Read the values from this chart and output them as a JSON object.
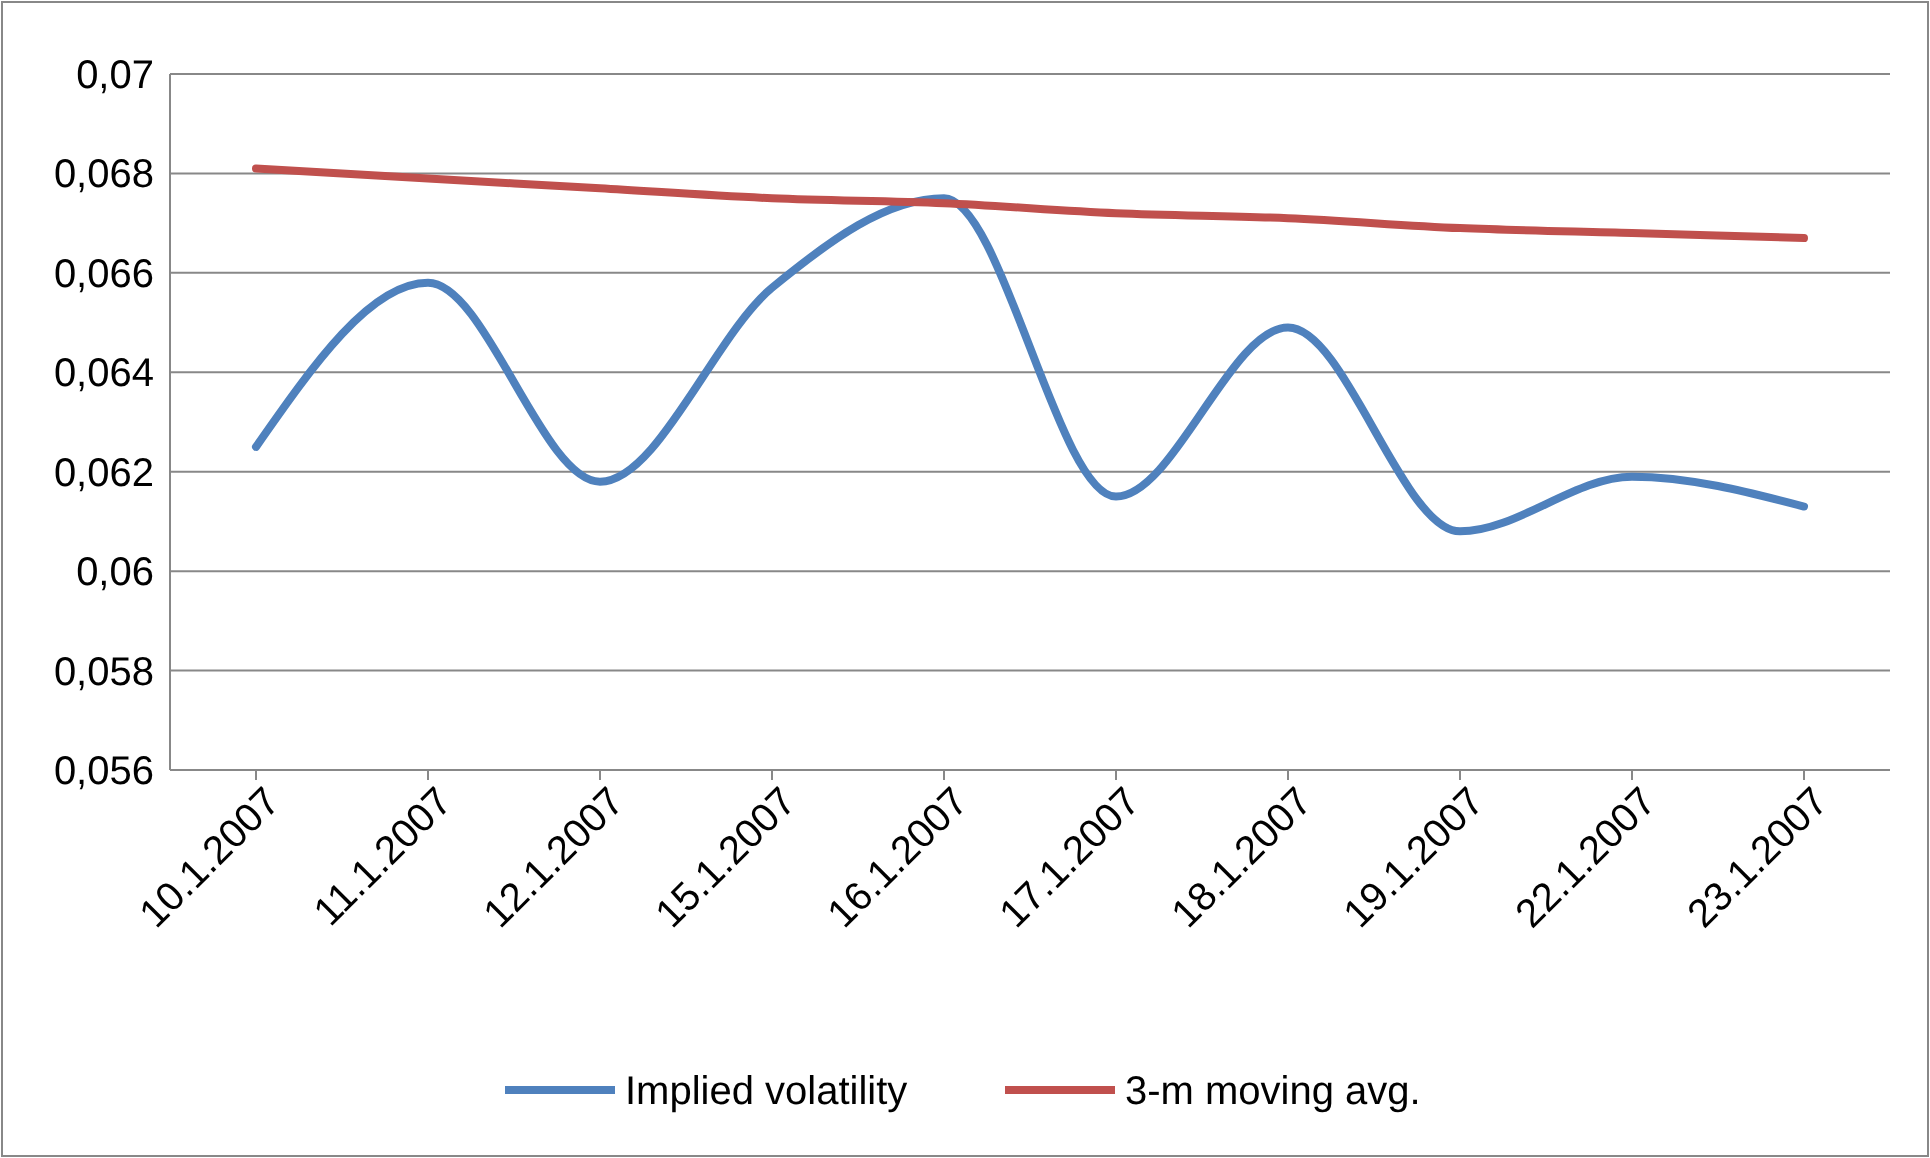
{
  "chart_data": {
    "type": "line",
    "categories": [
      "10.1.2007",
      "11.1.2007",
      "12.1.2007",
      "15.1.2007",
      "16.1.2007",
      "17.1.2007",
      "18.1.2007",
      "19.1.2007",
      "22.1.2007",
      "23.1.2007"
    ],
    "series": [
      {
        "name": "Implied volatility",
        "color": "#4f81bd",
        "values": [
          0.0625,
          0.0658,
          0.0618,
          0.0657,
          0.0675,
          0.0615,
          0.0649,
          0.0608,
          0.0619,
          0.0613
        ]
      },
      {
        "name": "3-m moving avg.",
        "color": "#c0504d",
        "values": [
          0.0681,
          0.0679,
          0.0677,
          0.0675,
          0.0674,
          0.0672,
          0.0671,
          0.0669,
          0.0668,
          0.0667
        ]
      }
    ],
    "ylim": [
      0.056,
      0.07
    ],
    "yticks": [
      {
        "value": 0.056,
        "label": "0,056"
      },
      {
        "value": 0.058,
        "label": "0,058"
      },
      {
        "value": 0.06,
        "label": "0,06"
      },
      {
        "value": 0.062,
        "label": "0,062"
      },
      {
        "value": 0.064,
        "label": "0,064"
      },
      {
        "value": 0.066,
        "label": "0,066"
      },
      {
        "value": 0.068,
        "label": "0,068"
      },
      {
        "value": 0.07,
        "label": "0,07"
      }
    ],
    "grid": "y",
    "legend": "bottom",
    "marker": "none",
    "line_style": "solid"
  }
}
